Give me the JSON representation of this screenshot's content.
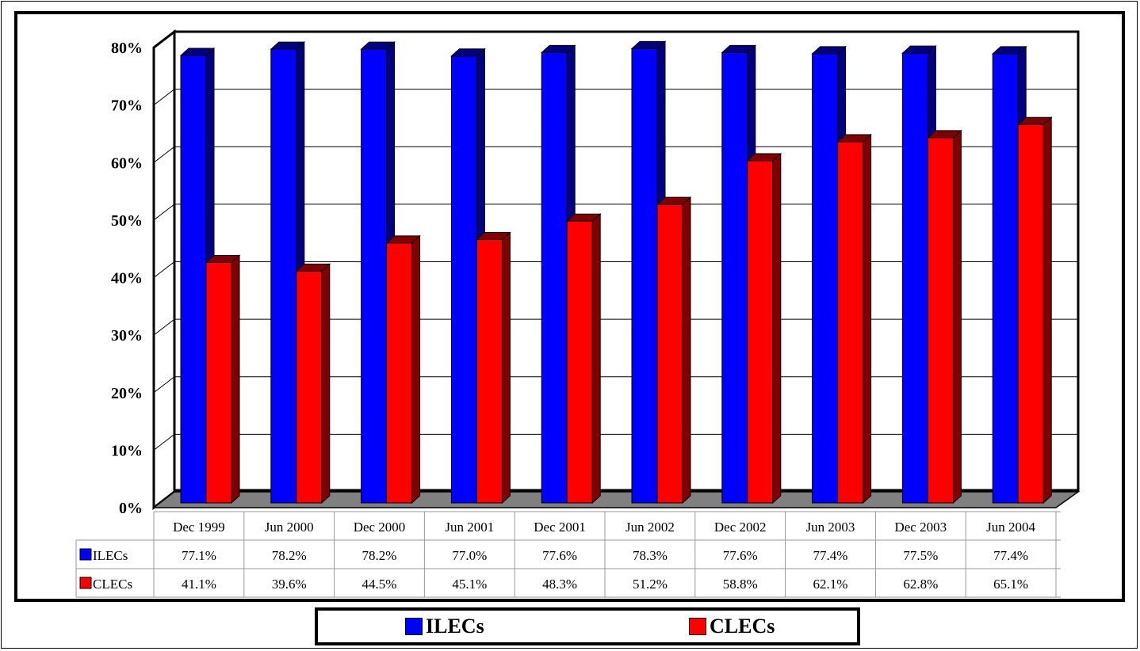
{
  "chart_data": {
    "type": "bar",
    "categories": [
      "Dec 1999",
      "Jun 2000",
      "Dec 2000",
      "Jun 2001",
      "Dec 2001",
      "Jun 2002",
      "Dec 2002",
      "Jun 2003",
      "Dec 2003",
      "Jun 2004"
    ],
    "series": [
      {
        "name": "ILECs",
        "values": [
          77.1,
          78.2,
          78.2,
          77.0,
          77.6,
          78.3,
          77.6,
          77.4,
          77.5,
          77.4
        ],
        "labels": [
          "77.1%",
          "78.2%",
          "78.2%",
          "77.0%",
          "77.6%",
          "78.3%",
          "77.6%",
          "77.4%",
          "77.5%",
          "77.4%"
        ],
        "color": "#0000FF"
      },
      {
        "name": "CLECs",
        "values": [
          41.1,
          39.6,
          44.5,
          45.1,
          48.3,
          51.2,
          58.8,
          62.1,
          62.8,
          65.1
        ],
        "labels": [
          "41.1%",
          "39.6%",
          "44.5%",
          "45.1%",
          "48.3%",
          "51.2%",
          "58.8%",
          "62.1%",
          "62.8%",
          "65.1%"
        ],
        "color": "#FF0000"
      }
    ],
    "ylim": [
      0,
      80
    ],
    "yticks": [
      "0%",
      "10%",
      "20%",
      "30%",
      "40%",
      "50%",
      "60%",
      "70%",
      "80%"
    ],
    "grid": true,
    "data_table": true,
    "legend_position": "bottom"
  },
  "legend": {
    "ilecs": "ILECs",
    "clecs": "CLECs"
  }
}
